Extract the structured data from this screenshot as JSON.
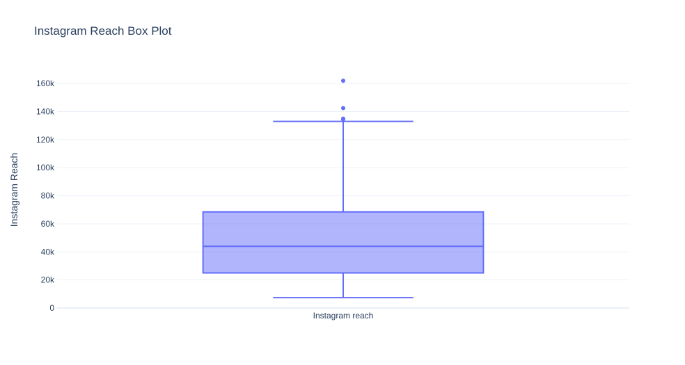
{
  "colors": {
    "series": "#636efa",
    "box_fill": "rgba(99,110,250,0.5)",
    "grid": "#ebf0f8",
    "text": "#2a3f5f"
  },
  "chart_data": {
    "type": "box",
    "title": "Instagram Reach Box Plot",
    "xlabel": "",
    "ylabel": "Instagram Reach",
    "categories": [
      "Instagram reach"
    ],
    "ylim": [
      0,
      170000
    ],
    "y_tick_values": [
      0,
      20000,
      40000,
      60000,
      80000,
      100000,
      120000,
      140000,
      160000
    ],
    "y_tick_labels": [
      "0",
      "20k",
      "40k",
      "60k",
      "80k",
      "100k",
      "120k",
      "140k",
      "160k"
    ],
    "grid": true,
    "legend": "none",
    "series": [
      {
        "category": "Instagram reach",
        "lower_fence": 7400,
        "q1": 25000,
        "median": 44000,
        "q3": 68500,
        "upper_fence": 133000,
        "outliers": [
          134500,
          135000,
          142500,
          162000
        ]
      }
    ]
  }
}
